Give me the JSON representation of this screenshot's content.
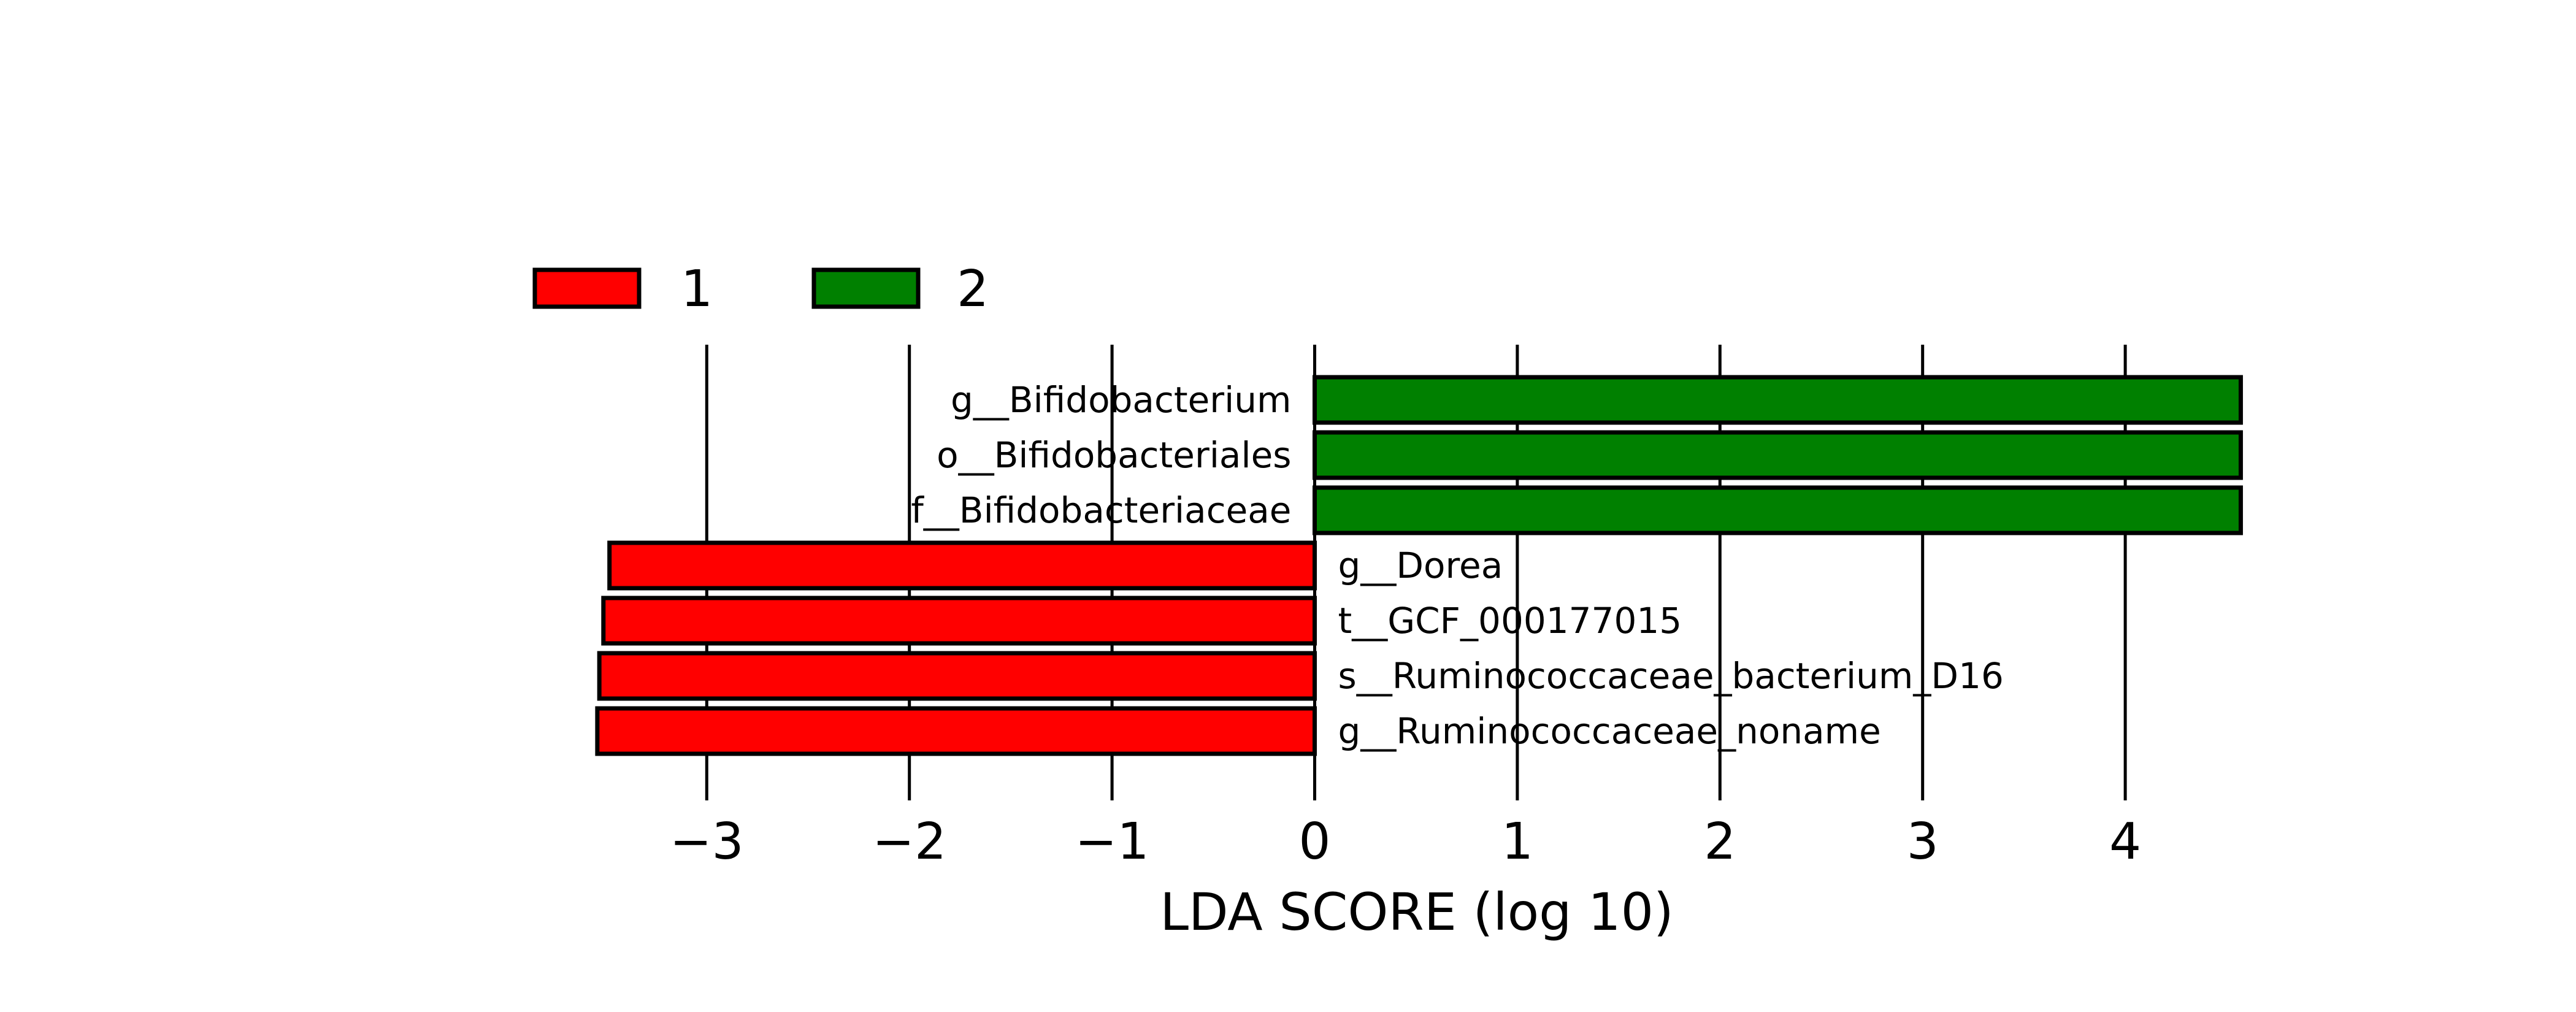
{
  "chart_data": {
    "type": "bar",
    "orientation": "horizontal",
    "title": "",
    "xlabel": "LDA SCORE (log 10)",
    "ylabel": "",
    "xlim": [
      -3.6,
      4.6
    ],
    "xticks": [
      -3,
      -2,
      -1,
      0,
      1,
      2,
      3,
      4
    ],
    "xtick_labels": [
      "−3",
      "−2",
      "−1",
      "0",
      "1",
      "2",
      "3",
      "4"
    ],
    "grid": true,
    "legend": {
      "placement": "top-left",
      "entries": [
        {
          "label": "1",
          "color": "#ff0000"
        },
        {
          "label": "2",
          "color": "#008000"
        }
      ]
    },
    "categories": [
      "g__Bifidobacterium",
      "o__Bifidobacteriales",
      "f__Bifidobacteriaceae",
      "g__Dorea",
      "t__GCF_000177015",
      "s__Ruminococcaceae_bacterium_D16",
      "g__Ruminococcaceae_noname"
    ],
    "values": [
      4.57,
      4.57,
      4.57,
      -3.48,
      -3.51,
      -3.53,
      -3.54
    ],
    "groups": [
      "2",
      "2",
      "2",
      "1",
      "1",
      "1",
      "1"
    ]
  }
}
